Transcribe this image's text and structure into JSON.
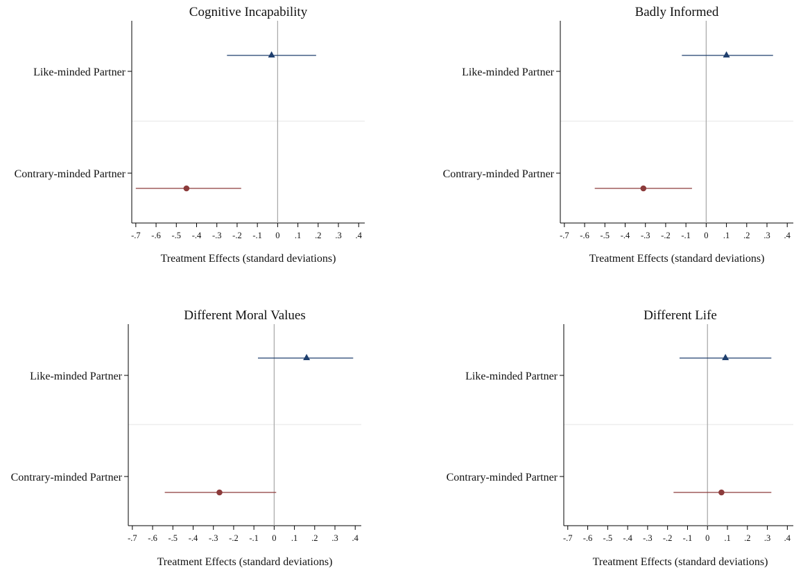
{
  "chart_data": [
    {
      "type": "scatter",
      "title": "Cognitive Incapability",
      "xlabel": "Treatment Effects (standard deviations)",
      "xlim": [
        -0.72,
        0.43
      ],
      "xticks": [
        -0.7,
        -0.6,
        -0.5,
        -0.4,
        -0.3,
        -0.2,
        -0.1,
        0,
        0.1,
        0.2,
        0.3,
        0.4
      ],
      "xtick_labels": [
        "-.7",
        "-.6",
        "-.5",
        "-.4",
        "-.3",
        "-.2",
        "-.1",
        "0",
        ".1",
        ".2",
        ".3",
        ".4"
      ],
      "reference_line": 0,
      "categories": [
        "Like-minded Partner",
        "Contrary-minded Partner"
      ],
      "series": [
        {
          "marker": "triangle",
          "color": "#1f3f6e",
          "estimate": -0.03,
          "ci": [
            -0.25,
            0.19
          ]
        },
        {
          "marker": "circle",
          "color": "#8c3b3b",
          "estimate": -0.45,
          "ci": [
            -0.7,
            -0.18
          ]
        }
      ]
    },
    {
      "type": "scatter",
      "title": "Badly Informed",
      "xlabel": "Treatment Effects (standard deviations)",
      "xlim": [
        -0.72,
        0.43
      ],
      "xticks": [
        -0.7,
        -0.6,
        -0.5,
        -0.4,
        -0.3,
        -0.2,
        -0.1,
        0,
        0.1,
        0.2,
        0.3,
        0.4
      ],
      "xtick_labels": [
        "-.7",
        "-.6",
        "-.5",
        "-.4",
        "-.3",
        "-.2",
        "-.1",
        "0",
        ".1",
        ".2",
        ".3",
        ".4"
      ],
      "reference_line": 0,
      "categories": [
        "Like-minded Partner",
        "Contrary-minded Partner"
      ],
      "series": [
        {
          "marker": "triangle",
          "color": "#1f3f6e",
          "estimate": 0.1,
          "ci": [
            -0.12,
            0.33
          ]
        },
        {
          "marker": "circle",
          "color": "#8c3b3b",
          "estimate": -0.31,
          "ci": [
            -0.55,
            -0.07
          ]
        }
      ]
    },
    {
      "type": "scatter",
      "title": "Different Moral Values",
      "xlabel": "Treatment Effects (standard deviations)",
      "xlim": [
        -0.72,
        0.43
      ],
      "xticks": [
        -0.7,
        -0.6,
        -0.5,
        -0.4,
        -0.3,
        -0.2,
        -0.1,
        0,
        0.1,
        0.2,
        0.3,
        0.4
      ],
      "xtick_labels": [
        "-.7",
        "-.6",
        "-.5",
        "-.4",
        "-.3",
        "-.2",
        "-.1",
        "0",
        ".1",
        ".2",
        ".3",
        ".4"
      ],
      "reference_line": 0,
      "categories": [
        "Like-minded Partner",
        "Contrary-minded Partner"
      ],
      "series": [
        {
          "marker": "triangle",
          "color": "#1f3f6e",
          "estimate": 0.16,
          "ci": [
            -0.08,
            0.39
          ]
        },
        {
          "marker": "circle",
          "color": "#8c3b3b",
          "estimate": -0.27,
          "ci": [
            -0.54,
            0.01
          ]
        }
      ]
    },
    {
      "type": "scatter",
      "title": "Different Life",
      "xlabel": "Treatment Effects (standard deviations)",
      "xlim": [
        -0.72,
        0.43
      ],
      "xticks": [
        -0.7,
        -0.6,
        -0.5,
        -0.4,
        -0.3,
        -0.2,
        -0.1,
        0,
        0.1,
        0.2,
        0.3,
        0.4
      ],
      "xtick_labels": [
        "-.7",
        "-.6",
        "-.5",
        "-.4",
        "-.3",
        "-.2",
        "-.1",
        "0",
        ".1",
        ".2",
        ".3",
        ".4"
      ],
      "reference_line": 0,
      "categories": [
        "Like-minded Partner",
        "Contrary-minded Partner"
      ],
      "series": [
        {
          "marker": "triangle",
          "color": "#1f3f6e",
          "estimate": 0.09,
          "ci": [
            -0.14,
            0.32
          ]
        },
        {
          "marker": "circle",
          "color": "#8c3b3b",
          "estimate": 0.07,
          "ci": [
            -0.17,
            0.32
          ]
        }
      ]
    }
  ]
}
